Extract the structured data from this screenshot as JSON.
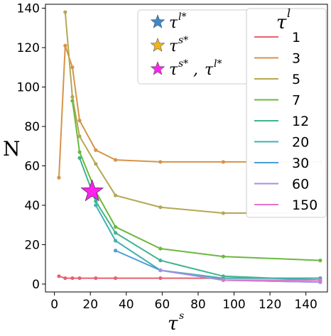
{
  "chart_data": {
    "type": "line",
    "xlabel": "τ",
    "xlabel_sup": "s",
    "ylabel": "N",
    "xlim": [
      -5,
      152
    ],
    "ylim": [
      -4,
      142
    ],
    "xticks": [
      "0",
      "20",
      "40",
      "60",
      "80",
      "100",
      "120",
      "140"
    ],
    "yticks": [
      "0",
      "20",
      "40",
      "60",
      "80",
      "100",
      "120",
      "140"
    ],
    "legend_title": "τ",
    "legend_title_sup": "l",
    "legend_position": "top-right",
    "series": [
      {
        "name": "1",
        "color": "#e8606e",
        "x": [
          2.5,
          6,
          10,
          14,
          23,
          34,
          59,
          94,
          148
        ],
        "y": [
          4,
          3,
          3,
          3,
          3,
          3,
          3,
          3,
          3
        ]
      },
      {
        "name": "3",
        "color": "#d69348",
        "x": [
          2.5,
          6,
          10,
          14,
          23,
          34,
          59,
          94,
          148
        ],
        "y": [
          54,
          121,
          110,
          83,
          68,
          63,
          62,
          62,
          62
        ]
      },
      {
        "name": "5",
        "color": "#b3a854",
        "x": [
          6,
          10,
          14,
          23,
          34,
          59,
          94,
          148
        ],
        "y": [
          138,
          95,
          75,
          61,
          45,
          39,
          36,
          36
        ]
      },
      {
        "name": "7",
        "color": "#6bb83e",
        "x": [
          10,
          14,
          23,
          34,
          59,
          94,
          148
        ],
        "y": [
          93,
          67,
          47,
          29,
          18,
          14,
          12
        ]
      },
      {
        "name": "12",
        "color": "#3fb48e",
        "x": [
          14,
          23,
          34,
          59,
          94,
          148
        ],
        "y": [
          64,
          42,
          26,
          12,
          4,
          2
        ]
      },
      {
        "name": "20",
        "color": "#45b0b0",
        "x": [
          23,
          34,
          59,
          94,
          148
        ],
        "y": [
          40,
          22,
          7,
          3,
          3
        ]
      },
      {
        "name": "30",
        "color": "#4a9fd6",
        "x": [
          34,
          59,
          94,
          148
        ],
        "y": [
          17,
          7,
          2,
          1
        ]
      },
      {
        "name": "60",
        "color": "#a48ee6",
        "x": [
          59,
          94,
          148
        ],
        "y": [
          7,
          2,
          1
        ]
      },
      {
        "name": "150",
        "color": "#e673c8",
        "x": [
          94,
          148
        ],
        "y": [
          2,
          2
        ]
      }
    ],
    "markers": [
      {
        "label": "τ^{l*}",
        "color": "#3f87c8",
        "points": []
      },
      {
        "label": "τ^{s*}",
        "color": "#f2b318",
        "points": []
      },
      {
        "label": "τ^{s*}, τ^{l*}",
        "color": "#ff22ee",
        "points": [
          {
            "x": 21,
            "y": 47
          }
        ]
      }
    ],
    "marker_legend": [
      {
        "base": "τ",
        "sup": "l*"
      },
      {
        "base": "τ",
        "sup": "s*"
      },
      {
        "base": "τ",
        "sup": "s*",
        "sep": ",",
        "base2": "τ",
        "sup2": "l*"
      }
    ]
  }
}
